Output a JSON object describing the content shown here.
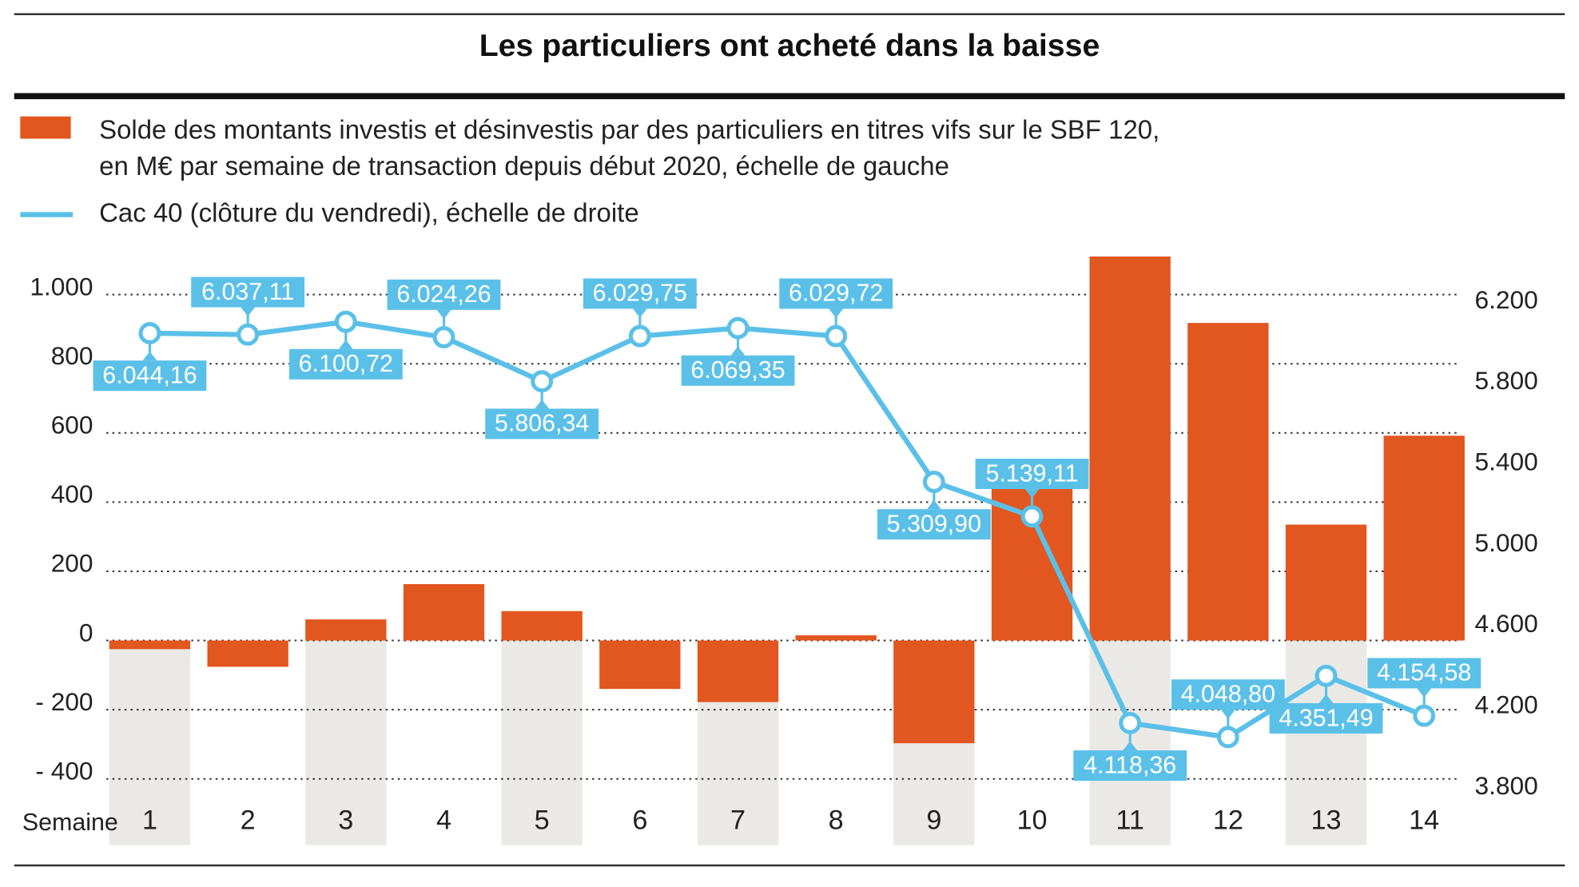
{
  "chart_data": {
    "type": "bar",
    "title": "Les particuliers ont acheté dans la baisse",
    "x_label": "Semaine",
    "categories": [
      "1",
      "2",
      "3",
      "4",
      "5",
      "6",
      "7",
      "8",
      "9",
      "10",
      "11",
      "12",
      "13",
      "14"
    ],
    "series": [
      {
        "name": "Solde des montants investis et désinvestis par des particuliers en titres vifs sur le SBF 120,\nen M€ par semaine de transaction depuis début 2020, échelle de gauche",
        "type": "bar",
        "color": "#e2561f",
        "values": [
          -25,
          -76,
          61,
          163,
          85,
          -140,
          -178,
          15,
          -297,
          469,
          1110,
          918,
          335,
          592
        ]
      },
      {
        "name": "Cac 40 (clôture du vendredi), échelle de droite",
        "type": "line",
        "axis": "y2",
        "color": "#5bc0e8",
        "values": [
          6044.16,
          6037.11,
          6100.72,
          6024.26,
          5806.34,
          6029.75,
          6069.35,
          6029.72,
          5309.9,
          5139.11,
          4118.36,
          4048.8,
          4351.49,
          4154.58
        ],
        "value_labels": [
          "6.044,16",
          "6.037,11",
          "6.100,72",
          "6.024,26",
          "5.806,34",
          "6.029,75",
          "6.069,35",
          "6.029,72",
          "5.309,90",
          "5.139,11",
          "4.118,36",
          "4.048,80",
          "4.351,49",
          "4.154,58"
        ]
      }
    ],
    "ylim": [
      -460,
      1120
    ],
    "yticks": [
      {
        "value": 1000,
        "label": "1.000"
      },
      800,
      600,
      400,
      200,
      0,
      {
        "value": -200,
        "label": "- 200"
      },
      {
        "value": -400,
        "label": "- 400"
      }
    ],
    "y2lim": [
      3740,
      6440
    ],
    "y2ticks": [
      {
        "value": 6200,
        "label": "6.200"
      },
      {
        "value": 5800,
        "label": "5.800"
      },
      {
        "value": 5400,
        "label": "5.400"
      },
      {
        "value": 5000,
        "label": "5.000"
      },
      {
        "value": 4600,
        "label": "4.600"
      },
      {
        "value": 4200,
        "label": "4.200"
      },
      {
        "value": 3800,
        "label": "3.800"
      }
    ],
    "grid": true
  }
}
